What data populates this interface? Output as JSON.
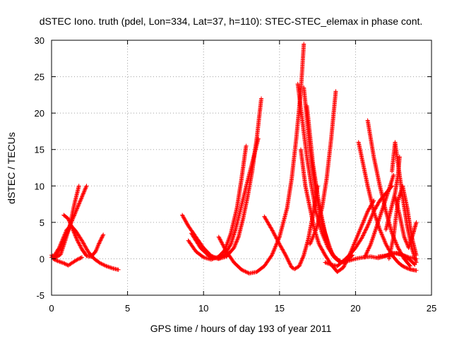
{
  "chart_data": {
    "type": "scatter",
    "title": "dSTEC Iono. truth (pdel, Lon=334, Lat=37, h=110): STEC-STEC_elemax in phase cont.",
    "xlabel": "GPS time / hours of day 193 of year 2011",
    "ylabel": "dSTEC  / TECUs",
    "xlim": [
      0,
      25
    ],
    "ylim": [
      -5,
      30
    ],
    "xticks": [
      0,
      5,
      10,
      15,
      20,
      25
    ],
    "yticks": [
      -5,
      0,
      5,
      10,
      15,
      20,
      25,
      30
    ],
    "grid": true,
    "marker": "plus",
    "color": "#ff0000",
    "series": [
      {
        "x": [
          0.0,
          0.3,
          0.6,
          0.9,
          1.2,
          1.5,
          1.8
        ],
        "y": [
          0.5,
          0.2,
          0.6,
          2.5,
          4.5,
          7.5,
          10.0
        ]
      },
      {
        "x": [
          0.0,
          0.3,
          0.6,
          0.9,
          1.1,
          1.4,
          1.7,
          2.0,
          2.3
        ],
        "y": [
          0.2,
          0.5,
          1.5,
          3.0,
          4.0,
          5.5,
          7.0,
          8.5,
          10.0
        ]
      },
      {
        "x": [
          0.2,
          0.5,
          0.8,
          1.0,
          1.3,
          1.6,
          2.0,
          2.4,
          2.8,
          3.2,
          3.6,
          4.0,
          4.4
        ],
        "y": [
          0.5,
          1.5,
          3.0,
          4.0,
          4.5,
          3.8,
          2.5,
          1.0,
          0.0,
          -0.6,
          -1.0,
          -1.3,
          -1.5
        ]
      },
      {
        "x": [
          0.8,
          1.1,
          1.4,
          1.7,
          2.0,
          2.3,
          2.6,
          2.9,
          3.1,
          3.4
        ],
        "y": [
          6.0,
          5.5,
          4.0,
          2.5,
          1.3,
          0.4,
          0.3,
          1.0,
          2.0,
          3.3
        ]
      },
      {
        "x": [
          0.1,
          0.4,
          0.8,
          1.1,
          1.4,
          1.7,
          2.0
        ],
        "y": [
          0.0,
          -0.3,
          -0.6,
          -0.9,
          -0.5,
          -0.1,
          0.2
        ]
      },
      {
        "x": [
          8.6,
          9.0,
          9.5,
          10.0,
          10.5,
          11.0,
          11.5,
          12.0,
          12.3,
          12.6,
          12.9,
          13.2,
          13.5,
          13.8
        ],
        "y": [
          6.0,
          4.5,
          3.0,
          1.5,
          0.4,
          0.0,
          0.3,
          1.5,
          3.0,
          5.5,
          8.5,
          12.0,
          16.5,
          22.0
        ]
      },
      {
        "x": [
          9.2,
          9.8,
          10.4,
          11.0,
          11.4,
          11.8,
          12.1,
          12.4,
          12.7,
          13.0,
          13.3,
          13.6
        ],
        "y": [
          3.5,
          1.5,
          0.3,
          0.0,
          0.6,
          2.0,
          4.0,
          6.5,
          9.0,
          11.5,
          14.0,
          16.5
        ]
      },
      {
        "x": [
          9.0,
          9.5,
          10.0,
          10.5,
          11.0,
          11.4,
          11.8,
          12.2,
          12.5,
          12.8
        ],
        "y": [
          2.5,
          1.0,
          0.2,
          -0.1,
          0.3,
          1.2,
          3.5,
          7.0,
          11.0,
          15.5
        ]
      },
      {
        "x": [
          11.0,
          11.5,
          12.0,
          12.5,
          13.0,
          13.5,
          14.0,
          14.5,
          15.0,
          15.5,
          15.8,
          16.1,
          16.4,
          16.6
        ],
        "y": [
          3.0,
          1.0,
          -0.5,
          -1.5,
          -2.0,
          -1.8,
          -1.0,
          0.5,
          3.0,
          7.0,
          11.0,
          16.5,
          23.0,
          29.5
        ]
      },
      {
        "x": [
          14.0,
          14.5,
          15.0,
          15.4,
          15.8,
          16.0,
          16.3,
          16.6,
          16.9,
          17.2,
          17.5
        ],
        "y": [
          5.8,
          4.0,
          2.0,
          0.5,
          -1.2,
          -1.4,
          -1.0,
          0.5,
          2.8,
          6.0,
          10.0
        ]
      },
      {
        "x": [
          16.4,
          16.7,
          17.0,
          17.3,
          17.6,
          18.0,
          18.4,
          18.8,
          19.2,
          19.6,
          20.0,
          20.4,
          20.8,
          21.2
        ],
        "y": [
          15.0,
          10.0,
          7.0,
          4.0,
          2.0,
          0.5,
          -0.8,
          -1.8,
          -1.2,
          0.5,
          2.5,
          4.5,
          6.5,
          8.0
        ]
      },
      {
        "x": [
          16.2,
          16.5,
          16.8,
          17.1,
          17.4,
          17.8,
          18.2,
          18.6,
          19.0,
          19.4,
          19.8
        ],
        "y": [
          24.0,
          19.0,
          14.0,
          10.0,
          6.5,
          3.5,
          1.5,
          0.2,
          -0.5,
          -0.3,
          0.5
        ]
      },
      {
        "x": [
          16.6,
          17.0,
          17.4,
          17.8,
          18.2,
          18.5,
          18.8
        ],
        "y": [
          23.5,
          15.0,
          9.0,
          5.0,
          2.0,
          0.5,
          0.0
        ]
      },
      {
        "x": [
          16.8,
          17.2,
          17.6,
          18.0,
          18.4,
          18.7,
          19.0
        ],
        "y": [
          21.0,
          13.0,
          7.5,
          3.5,
          1.0,
          0.0,
          -0.3
        ]
      },
      {
        "x": [
          17.0,
          17.4,
          17.8,
          18.1,
          18.4,
          18.7
        ],
        "y": [
          2.0,
          4.0,
          7.0,
          11.0,
          16.5,
          23.0
        ]
      },
      {
        "x": [
          18.0,
          18.4,
          18.8,
          19.2,
          19.6,
          20.0,
          20.4,
          20.8,
          21.2,
          21.6,
          22.0,
          22.4
        ],
        "y": [
          -0.5,
          -0.8,
          -1.0,
          -0.3,
          0.5,
          1.5,
          2.8,
          4.5,
          6.5,
          8.0,
          9.0,
          10.0
        ]
      },
      {
        "x": [
          20.2,
          20.5,
          20.8,
          21.2,
          21.6,
          22.0,
          22.4,
          22.8,
          23.1,
          23.4,
          23.7,
          24.0
        ],
        "y": [
          16.0,
          13.0,
          10.0,
          6.5,
          4.0,
          2.0,
          0.5,
          -0.5,
          -1.0,
          -1.3,
          -1.5,
          -1.6
        ]
      },
      {
        "x": [
          20.8,
          21.2,
          21.6,
          22.0,
          22.4,
          22.8,
          23.2,
          23.6
        ],
        "y": [
          19.0,
          14.0,
          10.0,
          6.5,
          3.5,
          1.5,
          0.0,
          -1.0
        ]
      },
      {
        "x": [
          19.0,
          19.5,
          20.0,
          20.5,
          21.0,
          21.5,
          22.0,
          22.5,
          23.0,
          23.5,
          24.0
        ],
        "y": [
          -0.5,
          -0.3,
          0.0,
          0.2,
          0.3,
          0.1,
          0.4,
          0.8,
          0.6,
          0.2,
          0.0
        ]
      },
      {
        "x": [
          20.6,
          21.0,
          21.4,
          21.8,
          22.2,
          22.5
        ],
        "y": [
          0.2,
          2.0,
          4.5,
          7.0,
          9.5,
          11.5
        ]
      },
      {
        "x": [
          22.4,
          22.6,
          22.8,
          23.1,
          23.4,
          23.7,
          24.0
        ],
        "y": [
          12.0,
          16.0,
          13.0,
          8.5,
          4.5,
          1.5,
          -0.5
        ]
      },
      {
        "x": [
          22.2,
          22.5,
          22.8,
          23.1,
          23.4,
          23.7,
          24.0
        ],
        "y": [
          0.0,
          3.0,
          8.0,
          10.0,
          7.0,
          3.0,
          0.5
        ]
      },
      {
        "x": [
          22.6,
          22.9,
          23.2,
          23.5,
          23.8,
          24.0
        ],
        "y": [
          8.5,
          6.0,
          3.0,
          1.5,
          3.5,
          5.0
        ]
      },
      {
        "x": [
          22.0,
          22.3,
          22.6,
          22.8,
          22.9
        ],
        "y": [
          4.0,
          6.5,
          9.0,
          11.5,
          14.0
        ]
      },
      {
        "x": [
          21.5,
          21.9,
          22.3,
          22.7,
          23.1,
          23.5,
          23.9
        ],
        "y": [
          0.3,
          0.4,
          0.6,
          0.8,
          0.5,
          0.0,
          -0.8
        ]
      }
    ]
  }
}
